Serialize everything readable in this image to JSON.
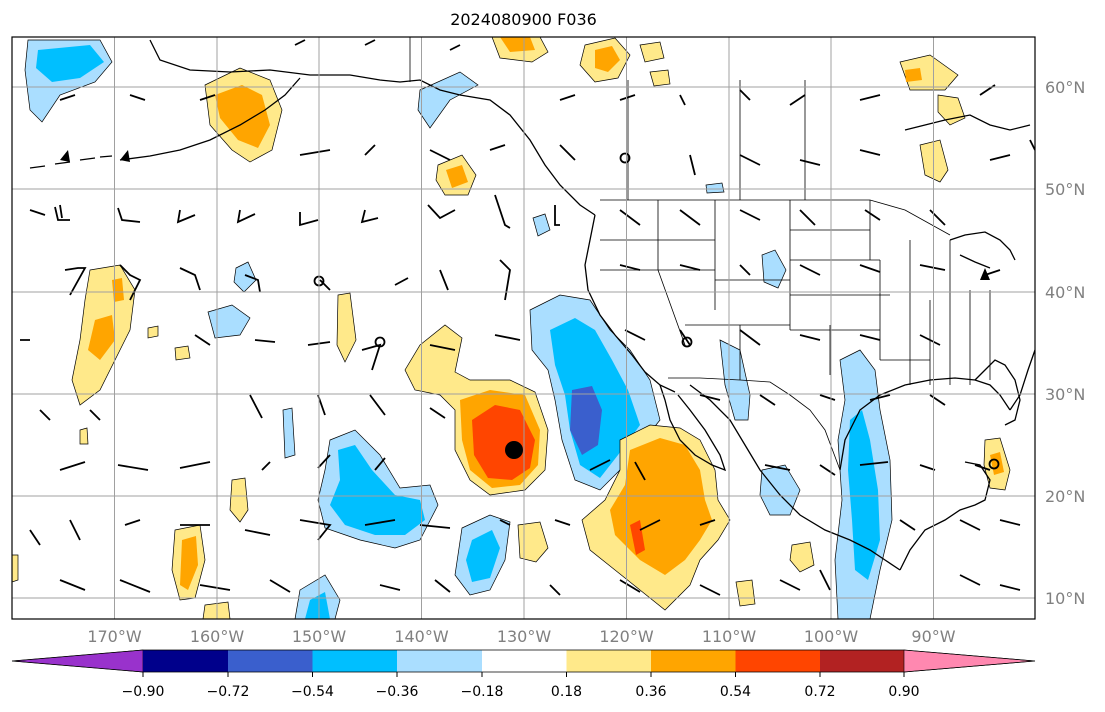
{
  "title": "2024080900 F036",
  "map": {
    "lon_labels": [
      "170°W",
      "160°W",
      "150°W",
      "140°W",
      "130°W",
      "120°W",
      "110°W",
      "100°W",
      "90°W"
    ],
    "lat_labels": [
      "60°N",
      "50°N",
      "40°N",
      "30°N",
      "20°N",
      "10°N"
    ],
    "gridline_color": "#a0a0a0"
  },
  "colorbar": {
    "tick_labels": [
      "−0.90",
      "−0.72",
      "−0.54",
      "−0.36",
      "−0.18",
      "0.18",
      "0.36",
      "0.54",
      "0.72",
      "0.90"
    ],
    "colors": [
      "#9932cc",
      "#00008b",
      "#3a5fcd",
      "#00bfff",
      "#aadeff",
      "#ffffff",
      "#ffe98a",
      "#ffa500",
      "#ff4500",
      "#b22222",
      "#ff88b0"
    ]
  },
  "fill_colors": {
    "neg1": "#aadeff",
    "neg2": "#00bfff",
    "neg3": "#3a5fcd",
    "pos1": "#ffe98a",
    "pos2": "#ffa500",
    "pos3": "#ff4500"
  }
}
